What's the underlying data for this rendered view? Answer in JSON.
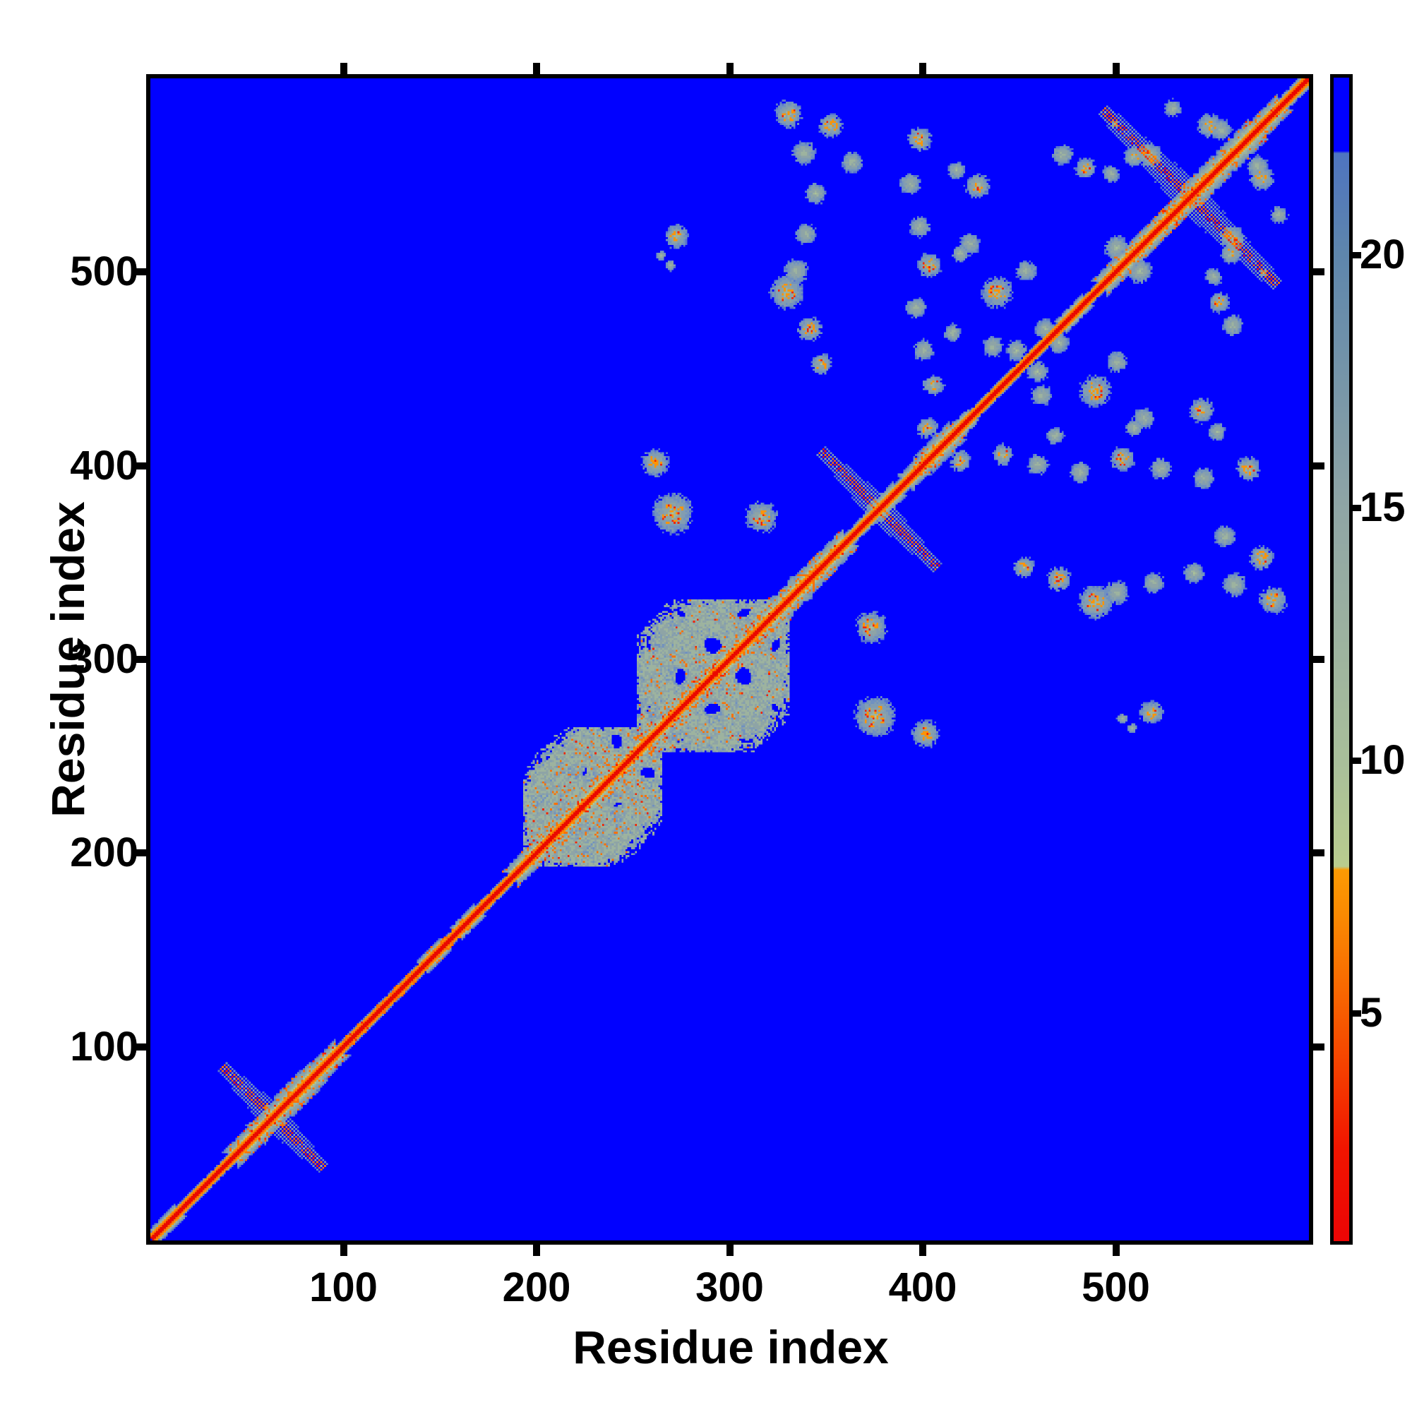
{
  "figure": {
    "xlabel": "Residue index",
    "ylabel": "Residue index",
    "x_ticks": [
      100,
      200,
      300,
      400,
      500
    ],
    "y_ticks": [
      100,
      200,
      300,
      400,
      500
    ],
    "colorbar_ticks": [
      5,
      10,
      15,
      20
    ]
  },
  "chart_data": {
    "type": "heatmap",
    "title": "",
    "xlabel": "Residue index",
    "ylabel": "Residue index",
    "x_range": [
      1,
      600
    ],
    "y_range": [
      1,
      600
    ],
    "grid": 600,
    "value_range": [
      0.5,
      23.5
    ],
    "colorbar_ticks": [
      5,
      10,
      15,
      20
    ],
    "symmetric": true,
    "legend_position": "right-colorbar",
    "grid_lines": false,
    "description": "Symmetric residue-residue distance map (~600 residues). Red diagonal = self-contacts (small distance), orange/green halos = near-diagonal secondary structure, pale sage blocks = folded domains (residues ~190-330), scattered off-diagonal clusters between residues ~330-600 = tertiary contacts. Blue background = large distances (> ~22).",
    "colors": {
      "background_far": "#0000ff",
      "steel_speckle": "#7594bd",
      "gray_halo": "#8ea4a6",
      "sage_mid": "#acc498",
      "pale_green": "#b9cc8e",
      "orange": "#fb9203",
      "deep_orange": "#f76a00",
      "red_core": "#ea0a00"
    },
    "palette_levels": [
      [
        1.8,
        [
          234,
          8,
          0
        ]
      ],
      [
        3.2,
        [
          243,
          34,
          0
        ]
      ],
      [
        4.7,
        [
          247,
          74,
          0
        ]
      ],
      [
        6.3,
        [
          250,
          112,
          4
        ]
      ],
      [
        7.9,
        [
          252,
          148,
          4
        ]
      ],
      [
        9.7,
        [
          184,
          201,
          140
        ]
      ],
      [
        12.2,
        [
          172,
          195,
          152
        ]
      ],
      [
        14.6,
        [
          157,
          179,
          159
        ]
      ],
      [
        17.0,
        [
          142,
          164,
          166
        ]
      ],
      [
        19.0,
        [
          130,
          157,
          177
        ]
      ],
      [
        20.8,
        [
          112,
          145,
          192
        ]
      ],
      [
        21.9,
        [
          88,
          116,
          206
        ]
      ],
      [
        99.0,
        [
          1,
          1,
          255
        ]
      ]
    ],
    "colorbar_gradient_stops": [
      [
        "0%",
        "#0101ff"
      ],
      [
        "6.3%",
        "#0101ff"
      ],
      [
        "6.5%",
        "#4e74c0"
      ],
      [
        "15.2%",
        "#5e86ac"
      ],
      [
        "37%",
        "#8fa5a5"
      ],
      [
        "59%",
        "#a9bf9a"
      ],
      [
        "67.8%",
        "#b9cc8e"
      ],
      [
        "68.1%",
        "#fc9a03"
      ],
      [
        "72%",
        "#fa8a02"
      ],
      [
        "78%",
        "#f86a01"
      ],
      [
        "85%",
        "#f54100"
      ],
      [
        "92%",
        "#f11500"
      ],
      [
        "100%",
        "#ec0505"
      ]
    ],
    "diagonal_segments": [
      [
        1,
        45,
        4,
        0
      ],
      [
        45,
        95,
        8,
        1
      ],
      [
        95,
        190,
        4,
        1
      ],
      [
        190,
        262,
        8,
        1
      ],
      [
        258,
        332,
        8,
        1
      ],
      [
        330,
        358,
        9,
        1
      ],
      [
        358,
        395,
        5,
        0
      ],
      [
        395,
        416,
        7,
        1
      ],
      [
        416,
        495,
        4,
        0
      ],
      [
        495,
        583,
        8,
        1
      ],
      [
        583,
        600,
        5,
        0
      ]
    ],
    "anti_diagonal_streaks": [
      [
        63,
        26,
        5
      ],
      [
        377,
        30,
        5
      ],
      [
        538,
        45,
        6
      ]
    ],
    "domain_blocks": [
      [
        193,
        264,
        193,
        264,
        0.86,
        0.028,
        46
      ],
      [
        252,
        330,
        252,
        330,
        0.8,
        0.022,
        56
      ]
    ],
    "off_diagonal_blobs": [
      [
        272,
        518,
        7,
        1
      ],
      [
        264,
        508,
        3,
        0
      ],
      [
        269,
        503,
        3,
        0
      ],
      [
        270,
        375,
        12,
        1
      ],
      [
        316,
        373,
        9,
        1
      ],
      [
        261,
        401,
        8,
        1
      ],
      [
        330,
        581,
        8,
        1
      ],
      [
        352,
        575,
        7,
        1
      ],
      [
        363,
        556,
        6,
        0
      ],
      [
        338,
        561,
        7,
        0
      ],
      [
        344,
        540,
        6,
        0
      ],
      [
        339,
        519,
        6,
        0
      ],
      [
        334,
        500,
        7,
        0
      ],
      [
        329,
        489,
        10,
        1
      ],
      [
        341,
        470,
        7,
        1
      ],
      [
        347,
        452,
        6,
        1
      ],
      [
        398,
        568,
        7,
        1
      ],
      [
        393,
        545,
        6,
        0
      ],
      [
        398,
        523,
        6,
        0
      ],
      [
        403,
        503,
        7,
        1
      ],
      [
        396,
        481,
        6,
        0
      ],
      [
        400,
        459,
        6,
        0
      ],
      [
        405,
        441,
        6,
        1
      ],
      [
        417,
        552,
        5,
        0
      ],
      [
        419,
        509,
        5,
        0
      ],
      [
        415,
        468,
        5,
        0
      ],
      [
        428,
        544,
        7,
        1
      ],
      [
        424,
        514,
        6,
        0
      ],
      [
        438,
        489,
        9,
        1
      ],
      [
        453,
        500,
        6,
        0
      ],
      [
        463,
        470,
        6,
        0
      ],
      [
        436,
        461,
        6,
        0
      ],
      [
        472,
        560,
        6,
        0
      ],
      [
        484,
        553,
        6,
        1
      ],
      [
        497,
        550,
        5,
        0
      ],
      [
        509,
        559,
        6,
        1
      ],
      [
        500,
        512,
        7,
        0
      ],
      [
        448,
        459,
        6,
        0
      ],
      [
        402,
        419,
        6,
        1
      ],
      [
        517,
        560,
        7,
        1
      ],
      [
        548,
        575,
        7,
        1
      ],
      [
        573,
        554,
        6,
        0
      ],
      [
        529,
        584,
        5,
        0
      ],
      [
        499,
        576,
        2,
        0
      ]
    ]
  }
}
